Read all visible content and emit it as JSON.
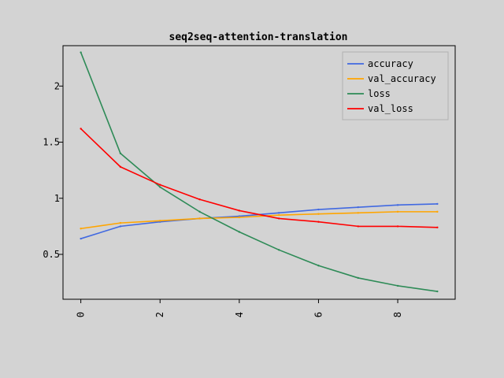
{
  "chart_data": {
    "type": "line",
    "title": "seq2seq-attention-translation",
    "xlabel": "",
    "ylabel": "",
    "xlim": [
      -0.45,
      9.45
    ],
    "ylim": [
      0.1,
      2.36
    ],
    "x": [
      0,
      1,
      2,
      3,
      4,
      5,
      6,
      7,
      8,
      9
    ],
    "xticks": [
      0,
      2,
      4,
      6,
      8
    ],
    "xtick_labels": [
      "0",
      "2",
      "4",
      "6",
      "8"
    ],
    "yticks": [
      0.5,
      1,
      1.5,
      2
    ],
    "ytick_labels": [
      "0.5",
      "1",
      "1.5",
      "2"
    ],
    "grid": false,
    "legend_position": "top-right",
    "series": [
      {
        "name": "accuracy",
        "color": "#4169e1",
        "values": [
          0.64,
          0.75,
          0.79,
          0.82,
          0.84,
          0.87,
          0.9,
          0.92,
          0.94,
          0.95
        ]
      },
      {
        "name": "val_accuracy",
        "color": "#ffa500",
        "values": [
          0.73,
          0.78,
          0.8,
          0.82,
          0.83,
          0.85,
          0.86,
          0.87,
          0.88,
          0.88
        ]
      },
      {
        "name": "loss",
        "color": "#2e8b57",
        "values": [
          2.3,
          1.4,
          1.1,
          0.88,
          0.7,
          0.54,
          0.4,
          0.29,
          0.22,
          0.17
        ]
      },
      {
        "name": "val_loss",
        "color": "#ff0000",
        "values": [
          1.62,
          1.28,
          1.12,
          0.99,
          0.89,
          0.82,
          0.79,
          0.75,
          0.75,
          0.74
        ]
      }
    ]
  }
}
